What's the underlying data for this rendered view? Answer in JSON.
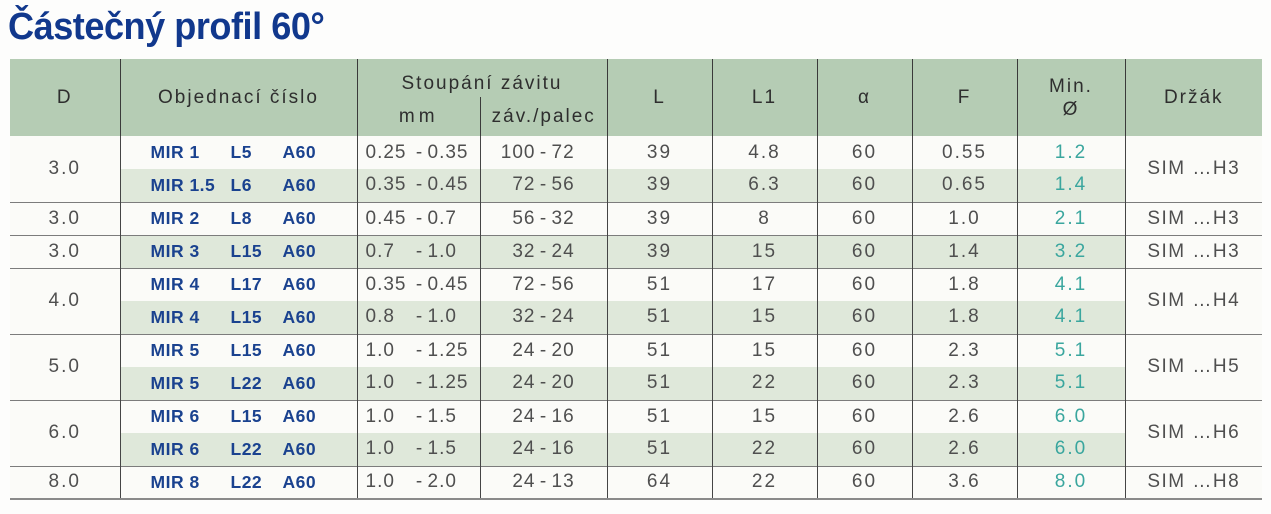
{
  "page": {
    "title": "Částečný profil 60°"
  },
  "colors": {
    "title_blue": "#11388d",
    "order_blue": "#1a428f",
    "header_green": "#b5ccb4",
    "stripe_green": "#dfe8da",
    "min_diameter_teal": "#3aa69e",
    "text_gray": "#4f4f4f"
  },
  "table": {
    "headers": {
      "d": "D",
      "order": "Objednací číslo",
      "pitch_group": "Stoupání závitu",
      "pitch_mm": "mm",
      "pitch_tpi": "záv./palec",
      "l": "L",
      "l1": "L1",
      "alpha": "α",
      "f": "F",
      "min_line1": "Min.",
      "min_line2": "Ø",
      "holder": "Držák"
    },
    "dash": "-",
    "rows": [
      {
        "d": "3.0",
        "order": [
          "MIR 1",
          "L5",
          "A60"
        ],
        "mm": [
          "0.25",
          "0.35"
        ],
        "tpi": [
          "100",
          "72"
        ],
        "l": "39",
        "l1": "4.8",
        "alpha": "60",
        "f": "0.55",
        "min_dia": "1.2",
        "holder": "SIM …H3"
      },
      {
        "order": [
          "MIR 1.5",
          "L6",
          "A60"
        ],
        "mm": [
          "0.35",
          "0.45"
        ],
        "tpi": [
          "72",
          "56"
        ],
        "l": "39",
        "l1": "6.3",
        "alpha": "60",
        "f": "0.65",
        "min_dia": "1.4"
      },
      {
        "d": "3.0",
        "order": [
          "MIR 2",
          "L8",
          "A60"
        ],
        "mm": [
          "0.45",
          "0.7"
        ],
        "tpi": [
          "56",
          "32"
        ],
        "l": "39",
        "l1": "8",
        "alpha": "60",
        "f": "1.0",
        "min_dia": "2.1",
        "holder": "SIM …H3"
      },
      {
        "d": "3.0",
        "order": [
          "MIR 3",
          "L15",
          "A60"
        ],
        "mm": [
          "0.7",
          "1.0"
        ],
        "tpi": [
          "32",
          "24"
        ],
        "l": "39",
        "l1": "15",
        "alpha": "60",
        "f": "1.4",
        "min_dia": "3.2",
        "holder": "SIM …H3"
      },
      {
        "d": "4.0",
        "order": [
          "MIR 4",
          "L17",
          "A60"
        ],
        "mm": [
          "0.35",
          "0.45"
        ],
        "tpi": [
          "72",
          "56"
        ],
        "l": "51",
        "l1": "17",
        "alpha": "60",
        "f": "1.8",
        "min_dia": "4.1",
        "holder": "SIM …H4"
      },
      {
        "order": [
          "MIR 4",
          "L15",
          "A60"
        ],
        "mm": [
          "0.8",
          "1.0"
        ],
        "tpi": [
          "32",
          "24"
        ],
        "l": "51",
        "l1": "15",
        "alpha": "60",
        "f": "1.8",
        "min_dia": "4.1"
      },
      {
        "d": "5.0",
        "order": [
          "MIR 5",
          "L15",
          "A60"
        ],
        "mm": [
          "1.0",
          "1.25"
        ],
        "tpi": [
          "24",
          "20"
        ],
        "l": "51",
        "l1": "15",
        "alpha": "60",
        "f": "2.3",
        "min_dia": "5.1",
        "holder": "SIM …H5"
      },
      {
        "order": [
          "MIR 5",
          "L22",
          "A60"
        ],
        "mm": [
          "1.0",
          "1.25"
        ],
        "tpi": [
          "24",
          "20"
        ],
        "l": "51",
        "l1": "22",
        "alpha": "60",
        "f": "2.3",
        "min_dia": "5.1"
      },
      {
        "d": "6.0",
        "order": [
          "MIR 6",
          "L15",
          "A60"
        ],
        "mm": [
          "1.0",
          "1.5"
        ],
        "tpi": [
          "24",
          "16"
        ],
        "l": "51",
        "l1": "15",
        "alpha": "60",
        "f": "2.6",
        "min_dia": "6.0",
        "holder": "SIM …H6"
      },
      {
        "order": [
          "MIR 6",
          "L22",
          "A60"
        ],
        "mm": [
          "1.0",
          "1.5"
        ],
        "tpi": [
          "24",
          "16"
        ],
        "l": "51",
        "l1": "22",
        "alpha": "60",
        "f": "2.6",
        "min_dia": "6.0"
      },
      {
        "d": "8.0",
        "order": [
          "MIR 8",
          "L22",
          "A60"
        ],
        "mm": [
          "1.0",
          "2.0"
        ],
        "tpi": [
          "24",
          "13"
        ],
        "l": "64",
        "l1": "22",
        "alpha": "60",
        "f": "3.6",
        "min_dia": "8.0",
        "holder": "SIM …H8"
      }
    ]
  }
}
